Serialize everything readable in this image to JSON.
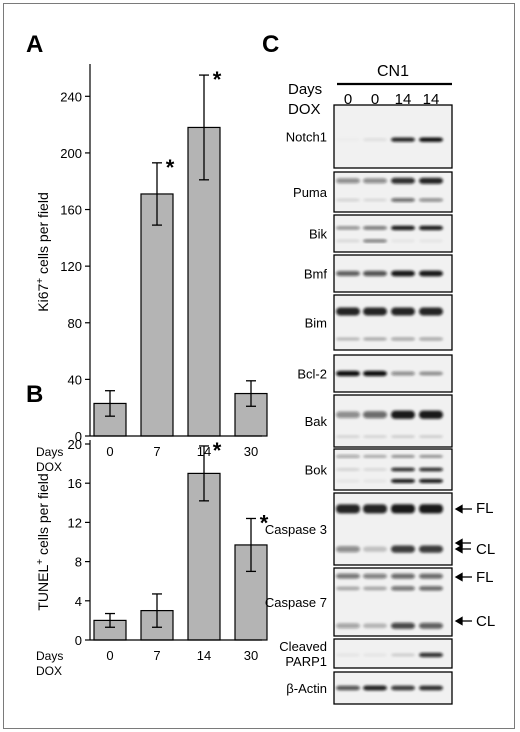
{
  "panels": {
    "A": "A",
    "B": "B",
    "C": "C"
  },
  "chart_data": [
    {
      "panel": "A",
      "type": "bar",
      "categories": [
        "0",
        "7",
        "14",
        "30"
      ],
      "values": [
        23,
        171,
        218,
        30
      ],
      "errors": [
        9,
        22,
        37,
        9
      ],
      "significant": [
        "",
        "*",
        "*",
        ""
      ],
      "ylabel_main": "Ki67",
      "ylabel_sup": "+",
      "ylabel_rest": " cells per field",
      "xlabel_line1": "Days",
      "xlabel_line2": "DOX",
      "ylim": [
        0,
        260
      ],
      "yticks": [
        0,
        40,
        80,
        120,
        160,
        200,
        240
      ],
      "bar_color": "#b4b4b4"
    },
    {
      "panel": "B",
      "type": "bar",
      "categories": [
        "0",
        "7",
        "14",
        "30"
      ],
      "values": [
        2,
        3,
        17,
        9.7
      ],
      "errors": [
        0.7,
        1.7,
        2.8,
        2.7
      ],
      "significant": [
        "",
        "",
        "*",
        "*"
      ],
      "ylabel_main": "TUNEL",
      "ylabel_sup": "+",
      "ylabel_rest": " cells per field",
      "xlabel_line1": "Days",
      "xlabel_line2": "DOX",
      "ylim": [
        0,
        20
      ],
      "yticks": [
        0,
        4,
        8,
        12,
        16,
        20
      ],
      "bar_color": "#b4b4b4"
    }
  ],
  "blot": {
    "group_label": "CN1",
    "days_label": "Days",
    "dox_label": "DOX",
    "lanes": [
      "0",
      "0",
      "14",
      "14"
    ],
    "rows": [
      {
        "label": "Notch1",
        "bands": [
          [
            0.55,
            [
              0.02,
              0.08,
              0.9,
              1.0
            ],
            0.07
          ]
        ]
      },
      {
        "label": "Puma",
        "bands": [
          [
            0.22,
            [
              0.45,
              0.45,
              0.85,
              0.9
            ],
            0.16
          ],
          [
            0.7,
            [
              0.12,
              0.1,
              0.6,
              0.45
            ],
            0.11
          ]
        ]
      },
      {
        "label": "Bik",
        "bands": [
          [
            0.35,
            [
              0.45,
              0.55,
              0.95,
              0.95
            ],
            0.12
          ],
          [
            0.7,
            [
              0.1,
              0.55,
              0.05,
              0.05
            ],
            0.09
          ]
        ]
      },
      {
        "label": "Bmf",
        "bands": [
          [
            0.5,
            [
              0.65,
              0.7,
              0.95,
              0.95
            ],
            0.16
          ]
        ]
      },
      {
        "label": "Bim",
        "bands": [
          [
            0.3,
            [
              0.9,
              0.9,
              0.9,
              0.9
            ],
            0.15
          ],
          [
            0.8,
            [
              0.25,
              0.3,
              0.35,
              0.35
            ],
            0.08
          ]
        ]
      },
      {
        "label": "Bcl-2",
        "bands": [
          [
            0.5,
            [
              1.0,
              1.0,
              0.45,
              0.4
            ],
            0.14
          ]
        ]
      },
      {
        "label": "Bak",
        "bands": [
          [
            0.38,
            [
              0.45,
              0.6,
              0.95,
              0.95
            ],
            0.16
          ],
          [
            0.8,
            [
              0.12,
              0.12,
              0.15,
              0.15
            ],
            0.07
          ]
        ]
      },
      {
        "label": "Bok",
        "bands": [
          [
            0.18,
            [
              0.35,
              0.3,
              0.4,
              0.4
            ],
            0.08
          ],
          [
            0.5,
            [
              0.12,
              0.1,
              0.85,
              0.85
            ],
            0.1
          ],
          [
            0.78,
            [
              0.05,
              0.05,
              0.95,
              0.95
            ],
            0.1
          ]
        ]
      },
      {
        "label": "Caspase 3",
        "bands": [
          [
            0.22,
            [
              0.9,
              0.9,
              0.95,
              0.95
            ],
            0.13
          ],
          [
            0.78,
            [
              0.45,
              0.2,
              0.8,
              0.8
            ],
            0.11
          ]
        ]
      },
      {
        "label": "Caspase 7",
        "bands": [
          [
            0.12,
            [
              0.55,
              0.5,
              0.6,
              0.6
            ],
            0.09
          ],
          [
            0.3,
            [
              0.3,
              0.3,
              0.55,
              0.6
            ],
            0.08
          ],
          [
            0.85,
            [
              0.35,
              0.25,
              0.75,
              0.65
            ],
            0.1
          ]
        ]
      },
      {
        "label": "Cleaved\nPARP1",
        "bands": [
          [
            0.55,
            [
              0.05,
              0.05,
              0.15,
              0.85
            ],
            0.16
          ]
        ]
      },
      {
        "label": "β-Actin",
        "bands": [
          [
            0.5,
            [
              0.7,
              0.9,
              0.8,
              0.85
            ],
            0.16
          ]
        ]
      }
    ],
    "annotations": [
      {
        "row": "Caspase 3",
        "label": "FL"
      },
      {
        "row": "Caspase 3",
        "label": "CL"
      },
      {
        "row": "Caspase 7",
        "label": "FL"
      },
      {
        "row": "Caspase 7",
        "label": "CL"
      }
    ]
  }
}
